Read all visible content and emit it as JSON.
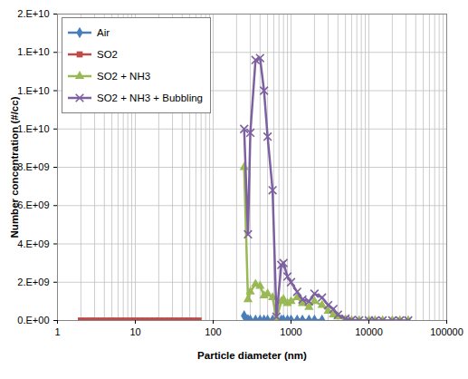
{
  "chart_data": {
    "type": "line",
    "x_label": "Particle diameter (nm)",
    "y_label": "Number concentration (#/cc)",
    "log": "x",
    "grid": true,
    "legend": "top-left",
    "xlim": [
      1,
      100000
    ],
    "xticks": [
      1,
      10,
      100,
      1000,
      10000,
      100000
    ],
    "ylim": [
      0,
      16000000000
    ],
    "yticks": [
      {
        "value": 0,
        "label": "0.E+00"
      },
      {
        "value": 2000000000,
        "label": "2.E+09"
      },
      {
        "value": 4000000000,
        "label": "4.E+09"
      },
      {
        "value": 6000000000,
        "label": "6.E+09"
      },
      {
        "value": 8000000000,
        "label": "8.E+09"
      },
      {
        "value": 10000000000,
        "label": "1.E+10"
      },
      {
        "value": 12000000000,
        "label": "1.E+10"
      },
      {
        "value": 14000000000,
        "label": "1.E+10"
      },
      {
        "value": 16000000000,
        "label": "2.E+10"
      }
    ],
    "series": [
      {
        "name": "Air",
        "color": "#4a7ebb",
        "marker": "diamond",
        "x": [
          250,
          280,
          300,
          350,
          400,
          450,
          500,
          580,
          650,
          750,
          800,
          900,
          1000,
          1200,
          1400,
          1700,
          2000,
          2500
        ],
        "values": [
          250000000,
          50000000,
          20000000,
          20000000,
          20000000,
          20000000,
          20000000,
          20000000,
          20000000,
          20000000,
          20000000,
          20000000,
          20000000,
          20000000,
          20000000,
          20000000,
          20000000,
          20000000
        ]
      },
      {
        "name": "SO2",
        "color": "#be4b48",
        "marker": "square",
        "x": [
          2.0,
          2.3,
          2.7,
          3.1,
          3.6,
          4.2,
          4.9,
          5.6,
          6.5,
          7.5,
          8.7,
          10,
          11.5,
          13.3,
          15.4,
          17.8,
          20.5,
          23.7,
          27.4,
          31.6,
          36.5,
          42.2,
          48.7,
          56.2,
          64.9
        ],
        "values": [
          0,
          0,
          0,
          0,
          0,
          0,
          0,
          0,
          0,
          0,
          0,
          0,
          0,
          0,
          0,
          0,
          0,
          0,
          0,
          0,
          0,
          0,
          0,
          0,
          0
        ]
      },
      {
        "name": "SO2 + NH3",
        "color": "#98b954",
        "marker": "triangle",
        "x": [
          250,
          280,
          300,
          350,
          400,
          450,
          500,
          580,
          650,
          750,
          800,
          900,
          1000,
          1200,
          1400,
          1700,
          2000,
          2500,
          3000,
          3500,
          4000,
          5000,
          6000,
          7500,
          10000,
          12000,
          15000,
          20000,
          25000,
          32000
        ],
        "values": [
          8000000000,
          1100000000,
          1500000000,
          1900000000,
          1800000000,
          1300000000,
          1400000000,
          1200000000,
          100000000,
          1000000000,
          1100000000,
          900000000,
          1000000000,
          1200000000,
          900000000,
          700000000,
          1000000000,
          800000000,
          500000000,
          300000000,
          200000000,
          50000000,
          0,
          0,
          0,
          0,
          0,
          0,
          0,
          0
        ]
      },
      {
        "name": "SO2 + NH3 + Bubbling",
        "color": "#7d60a0",
        "marker": "x",
        "x": [
          250,
          280,
          300,
          350,
          400,
          450,
          500,
          580,
          650,
          750,
          800,
          900,
          1000,
          1200,
          1400,
          1700,
          2000,
          2500,
          3000,
          3500,
          4000,
          5000,
          6000,
          7500,
          10000,
          12000,
          15000,
          20000,
          25000,
          32000
        ],
        "values": [
          10000000000,
          4500000000,
          9800000000,
          13600000000,
          13700000000,
          12000000000,
          9600000000,
          6800000000,
          200000000,
          2900000000,
          3000000000,
          2300000000,
          2000000000,
          1500000000,
          1100000000,
          1000000000,
          1400000000,
          1200000000,
          800000000,
          600000000,
          300000000,
          100000000,
          30000000,
          10000000,
          0,
          0,
          0,
          0,
          0,
          0
        ]
      }
    ]
  }
}
